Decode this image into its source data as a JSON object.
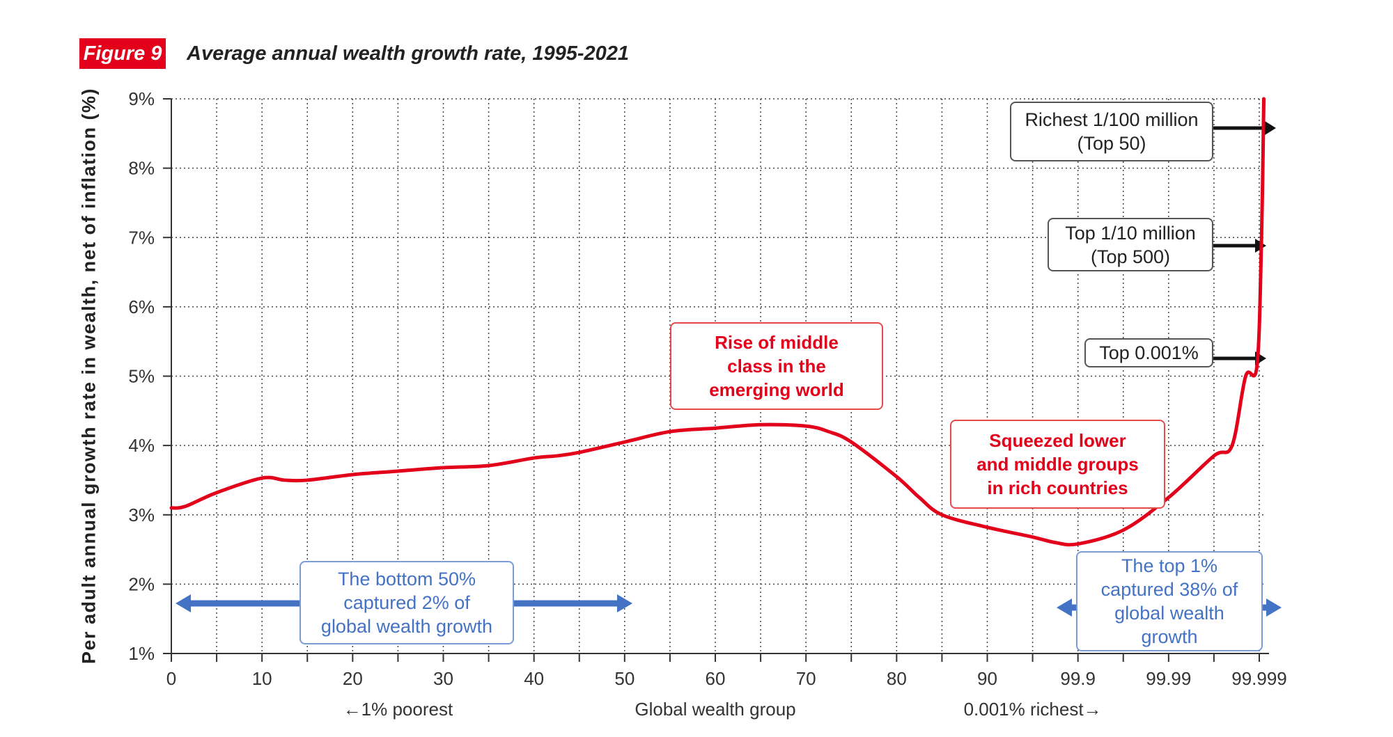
{
  "figure": {
    "badge": "Figure 9",
    "title": "Average annual wealth growth rate, 1995-2021"
  },
  "chart_data": {
    "type": "line",
    "title": "Average annual wealth growth rate, 1995-2021",
    "xlabel": "Global wealth group",
    "ylabel": "Per adult annual growth rate in wealth, net of inflation (%)",
    "x_sublabels": {
      "left": "←1% poorest",
      "right": "0.001% richest→"
    },
    "ylim": [
      1,
      9
    ],
    "yticks": [
      "1%",
      "2%",
      "3%",
      "4%",
      "5%",
      "6%",
      "7%",
      "8%",
      "9%"
    ],
    "ytick_values": [
      1,
      2,
      3,
      4,
      5,
      6,
      7,
      8,
      9
    ],
    "xticks": [
      "0",
      "10",
      "20",
      "30",
      "40",
      "50",
      "60",
      "70",
      "80",
      "90",
      "99.9",
      "99.99",
      "99.999"
    ],
    "xtick_positions": [
      0,
      2,
      4,
      6,
      8,
      10,
      12,
      14,
      16,
      18,
      20,
      22,
      24
    ],
    "x_grid_intervals": 24,
    "grid": true,
    "series": [
      {
        "name": "Average annual wealth growth rate",
        "color": "#e2001a",
        "x": [
          0,
          0.3,
          1,
          2,
          2.5,
          3,
          4,
          5,
          6,
          7,
          8,
          8.5,
          9,
          10,
          11,
          12,
          13,
          14,
          14.5,
          15,
          16,
          16.5,
          17,
          18,
          19,
          19.5,
          20,
          21,
          22,
          23,
          23.4,
          23.7,
          23.95,
          24.05,
          24.1
        ],
        "values": [
          3.1,
          3.12,
          3.32,
          3.53,
          3.5,
          3.5,
          3.58,
          3.63,
          3.68,
          3.71,
          3.82,
          3.85,
          3.9,
          4.05,
          4.2,
          4.25,
          4.3,
          4.28,
          4.2,
          4.05,
          3.55,
          3.25,
          3.0,
          2.82,
          2.68,
          2.6,
          2.58,
          2.78,
          3.25,
          3.85,
          4.0,
          5.0,
          5.15,
          7.0,
          9.0
        ]
      }
    ]
  },
  "annotations": {
    "middle_class": "Rise of middle class in the emerging world",
    "middle_class_lines": [
      "Rise of middle",
      "class in the",
      "emerging world"
    ],
    "squeezed_lines": [
      "Squeezed lower",
      "and middle groups",
      "in rich countries"
    ],
    "bottom50_lines": [
      "The bottom 50%",
      "captured 2% of",
      "global wealth growth"
    ],
    "top1_lines": [
      "The top 1%",
      "captured 38% of",
      "global wealth",
      "growth"
    ],
    "richest_lines": [
      "Richest 1/100 million",
      "(Top 50)"
    ],
    "top10m_lines": [
      "Top 1/10 million",
      "(Top 500)"
    ],
    "top0001": "Top 0.001%"
  },
  "colors": {
    "accent_red": "#e2001a",
    "annotation_blue": "#4472c4",
    "arrow_black": "#111111"
  }
}
